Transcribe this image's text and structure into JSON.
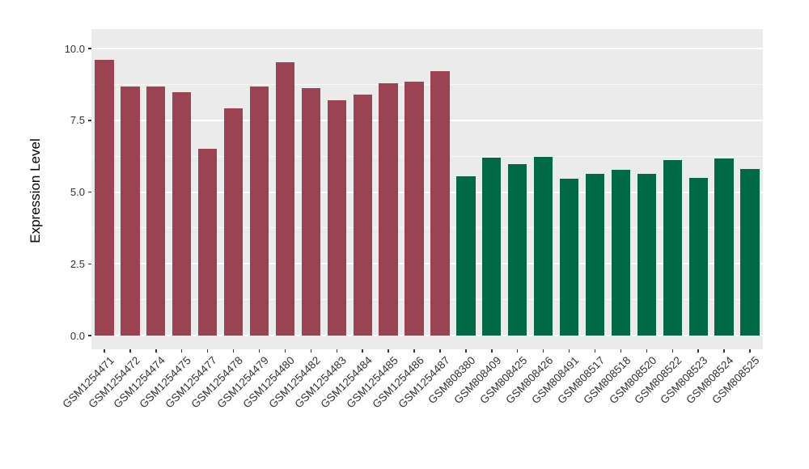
{
  "chart_data": {
    "type": "bar",
    "title": "",
    "xlabel": "",
    "ylabel": "Expression Level",
    "ylim": [
      0,
      10
    ],
    "grid": true,
    "legend_position": "none",
    "panel_background": "#EBEBEB",
    "gridline_color": "#FFFFFF",
    "y_ticks": [
      {
        "value": 0.0,
        "label": "0.0"
      },
      {
        "value": 2.5,
        "label": "2.5"
      },
      {
        "value": 5.0,
        "label": "5.0"
      },
      {
        "value": 7.5,
        "label": "7.5"
      },
      {
        "value": 10.0,
        "label": "10.0"
      }
    ],
    "y_minor_ticks": [
      1.25,
      3.75,
      6.25,
      8.75
    ],
    "group_colors": {
      "group1": "#9B4352",
      "group2": "#006A46"
    },
    "bars": [
      {
        "label": "GSM1254471",
        "value": 9.62,
        "group": "group1"
      },
      {
        "label": "GSM1254472",
        "value": 8.67,
        "group": "group1"
      },
      {
        "label": "GSM1254474",
        "value": 8.67,
        "group": "group1"
      },
      {
        "label": "GSM1254475",
        "value": 8.48,
        "group": "group1"
      },
      {
        "label": "GSM1254477",
        "value": 6.52,
        "group": "group1"
      },
      {
        "label": "GSM1254478",
        "value": 7.93,
        "group": "group1"
      },
      {
        "label": "GSM1254479",
        "value": 8.68,
        "group": "group1"
      },
      {
        "label": "GSM1254480",
        "value": 9.52,
        "group": "group1"
      },
      {
        "label": "GSM1254482",
        "value": 8.62,
        "group": "group1"
      },
      {
        "label": "GSM1254483",
        "value": 8.2,
        "group": "group1"
      },
      {
        "label": "GSM1254484",
        "value": 8.39,
        "group": "group1"
      },
      {
        "label": "GSM1254485",
        "value": 8.78,
        "group": "group1"
      },
      {
        "label": "GSM1254486",
        "value": 8.84,
        "group": "group1"
      },
      {
        "label": "GSM1254487",
        "value": 9.21,
        "group": "group1"
      },
      {
        "label": "GSM808380",
        "value": 5.54,
        "group": "group2"
      },
      {
        "label": "GSM808409",
        "value": 6.19,
        "group": "group2"
      },
      {
        "label": "GSM808425",
        "value": 5.96,
        "group": "group2"
      },
      {
        "label": "GSM808426",
        "value": 6.23,
        "group": "group2"
      },
      {
        "label": "GSM808491",
        "value": 5.46,
        "group": "group2"
      },
      {
        "label": "GSM808517",
        "value": 5.63,
        "group": "group2"
      },
      {
        "label": "GSM808518",
        "value": 5.77,
        "group": "group2"
      },
      {
        "label": "GSM808520",
        "value": 5.64,
        "group": "group2"
      },
      {
        "label": "GSM808522",
        "value": 6.1,
        "group": "group2"
      },
      {
        "label": "GSM808523",
        "value": 5.5,
        "group": "group2"
      },
      {
        "label": "GSM808524",
        "value": 6.18,
        "group": "group2"
      },
      {
        "label": "GSM808525",
        "value": 5.79,
        "group": "group2"
      }
    ]
  }
}
